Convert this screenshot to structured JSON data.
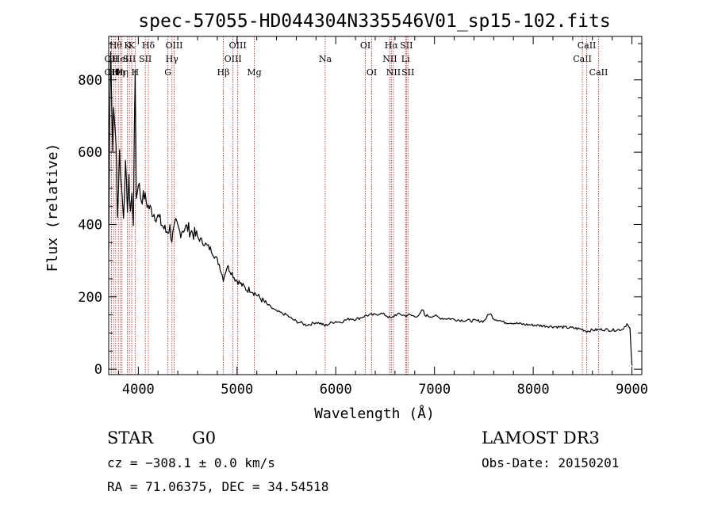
{
  "chart_data": {
    "type": "line",
    "title": "spec-57055-HD044304N335546V01_sp15-102.fits",
    "xlabel": "Wavelength (Å)",
    "ylabel": "Flux (relative)",
    "xlim": [
      3700,
      9100
    ],
    "ylim": [
      -15,
      920
    ],
    "xticks": [
      4000,
      5000,
      6000,
      7000,
      8000,
      9000
    ],
    "yticks": [
      0,
      200,
      400,
      600,
      800
    ],
    "series": [
      {
        "name": "flux",
        "x": [
          3700,
          3710,
          3720,
          3740,
          3750,
          3770,
          3780,
          3790,
          3810,
          3830,
          3850,
          3870,
          3890,
          3905,
          3920,
          3935,
          3950,
          3968,
          3980,
          4000,
          4030,
          4060,
          4100,
          4130,
          4160,
          4200,
          4240,
          4280,
          4320,
          4340,
          4380,
          4420,
          4460,
          4500,
          4540,
          4580,
          4620,
          4660,
          4700,
          4740,
          4780,
          4820,
          4861,
          4900,
          4940,
          4980,
          5020,
          5060,
          5100,
          5140,
          5180,
          5220,
          5260,
          5300,
          5350,
          5400,
          5450,
          5500,
          5550,
          5600,
          5650,
          5700,
          5750,
          5800,
          5850,
          5890,
          5950,
          6000,
          6050,
          6100,
          6150,
          6200,
          6250,
          6300,
          6350,
          6400,
          6450,
          6500,
          6563,
          6600,
          6650,
          6700,
          6750,
          6800,
          6850,
          6880,
          6900,
          6950,
          7000,
          7050,
          7100,
          7150,
          7200,
          7250,
          7300,
          7400,
          7500,
          7560,
          7600,
          7650,
          7700,
          7800,
          7900,
          8000,
          8100,
          8200,
          8300,
          8400,
          8500,
          8542,
          8600,
          8700,
          8800,
          8900,
          8950,
          8980,
          9000
        ],
        "values": [
          330,
          700,
          880,
          620,
          720,
          650,
          560,
          420,
          600,
          500,
          430,
          560,
          450,
          520,
          440,
          480,
          410,
          830,
          470,
          520,
          470,
          480,
          450,
          440,
          430,
          420,
          400,
          380,
          390,
          360,
          400,
          380,
          390,
          390,
          380,
          370,
          360,
          350,
          340,
          330,
          310,
          290,
          250,
          285,
          270,
          250,
          240,
          230,
          220,
          220,
          210,
          200,
          190,
          180,
          170,
          160,
          155,
          150,
          140,
          132,
          128,
          122,
          125,
          130,
          126,
          120,
          128,
          132,
          130,
          136,
          140,
          138,
          142,
          148,
          150,
          150,
          155,
          150,
          140,
          150,
          152,
          148,
          150,
          146,
          150,
          165,
          150,
          146,
          148,
          142,
          140,
          140,
          138,
          136,
          135,
          134,
          133,
          155,
          140,
          136,
          130,
          128,
          124,
          122,
          120,
          118,
          116,
          114,
          110,
          105,
          108,
          110,
          108,
          110,
          125,
          110,
          10
        ]
      }
    ],
    "lines": [
      {
        "x": 3727,
        "label": "OII",
        "row": 2
      },
      {
        "x": 3727,
        "label": "OII",
        "row": 3
      },
      {
        "x": 3750,
        "label": "Hθ",
        "row": 3
      },
      {
        "x": 3771,
        "label": "Hθ",
        "row": 1
      },
      {
        "x": 3798,
        "label": "Hη",
        "row": 3
      },
      {
        "x": 3820,
        "label": "HeI",
        "row": 2
      },
      {
        "x": 3835,
        "label": "Hη",
        "row": 3
      },
      {
        "x": 3889,
        "label": "K",
        "row": 1
      },
      {
        "x": 3910,
        "label": "SII",
        "row": 2
      },
      {
        "x": 3933,
        "label": "K",
        "row": 1
      },
      {
        "x": 3968,
        "label": "H",
        "row": 3
      },
      {
        "x": 4071,
        "label": "SII",
        "row": 2
      },
      {
        "x": 4102,
        "label": "Hδ",
        "row": 1
      },
      {
        "x": 4300,
        "label": "G",
        "row": 3
      },
      {
        "x": 4341,
        "label": "Hγ",
        "row": 2
      },
      {
        "x": 4363,
        "label": "OIII",
        "row": 1
      },
      {
        "x": 4861,
        "label": "Hβ",
        "row": 3
      },
      {
        "x": 4959,
        "label": "OIII",
        "row": 2
      },
      {
        "x": 5007,
        "label": "OIII",
        "row": 1
      },
      {
        "x": 5175,
        "label": "Mg",
        "row": 3
      },
      {
        "x": 5893,
        "label": "Na",
        "row": 2
      },
      {
        "x": 6300,
        "label": "OI",
        "row": 1
      },
      {
        "x": 6364,
        "label": "OI",
        "row": 3
      },
      {
        "x": 6548,
        "label": "NII",
        "row": 2
      },
      {
        "x": 6563,
        "label": "Hα",
        "row": 1
      },
      {
        "x": 6584,
        "label": "NII",
        "row": 3
      },
      {
        "x": 6707,
        "label": "Li",
        "row": 2
      },
      {
        "x": 6716,
        "label": "SII",
        "row": 1
      },
      {
        "x": 6731,
        "label": "SII",
        "row": 3
      },
      {
        "x": 8498,
        "label": "CaII",
        "row": 2
      },
      {
        "x": 8542,
        "label": "CaII",
        "row": 1
      },
      {
        "x": 8662,
        "label": "CaII",
        "row": 3
      }
    ]
  },
  "footer": {
    "object_type": "STAR",
    "subclass": "G0",
    "survey": "LAMOST DR3",
    "redshift": "cz = −308.1 ± 0.0 km/s",
    "obs_date": "Obs-Date: 20150201",
    "coords": "RA =  71.06375, DEC =  34.54518"
  },
  "colors": {
    "line_marker": "#b22222",
    "spectrum": "#000000",
    "background": "#ffffff"
  }
}
